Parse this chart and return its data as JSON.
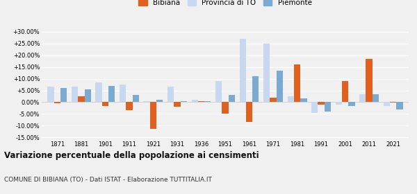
{
  "years": [
    1871,
    1881,
    1901,
    1911,
    1921,
    1931,
    1936,
    1951,
    1961,
    1971,
    1981,
    1991,
    2001,
    2011,
    2021
  ],
  "bibiana": [
    -0.5,
    2.5,
    -1.5,
    -3.5,
    -11.5,
    -2.0,
    0.5,
    -5.0,
    -8.5,
    2.0,
    16.0,
    -1.0,
    9.0,
    18.5,
    -0.3
  ],
  "provincia_to": [
    6.5,
    6.5,
    8.5,
    7.5,
    0.5,
    6.5,
    1.0,
    9.0,
    27.0,
    25.0,
    2.5,
    -4.5,
    -1.0,
    3.5,
    -1.5
  ],
  "piemonte": [
    6.0,
    5.5,
    7.0,
    3.0,
    1.0,
    0.5,
    0.5,
    3.0,
    11.0,
    13.5,
    1.5,
    -4.0,
    -1.5,
    3.5,
    -3.0
  ],
  "color_bibiana": "#e06020",
  "color_provincia": "#c8d8f0",
  "color_piemonte": "#7aaad0",
  "title": "Variazione percentuale della popolazione ai censimenti",
  "subtitle": "COMUNE DI BIBIANA (TO) - Dati ISTAT - Elaborazione TUTTITALIA.IT",
  "ylim": [
    -16,
    32
  ],
  "yticks": [
    -15,
    -10,
    -5,
    0,
    5,
    10,
    15,
    20,
    25,
    30
  ],
  "background_color": "#f0f0f0",
  "grid_color": "#ffffff"
}
